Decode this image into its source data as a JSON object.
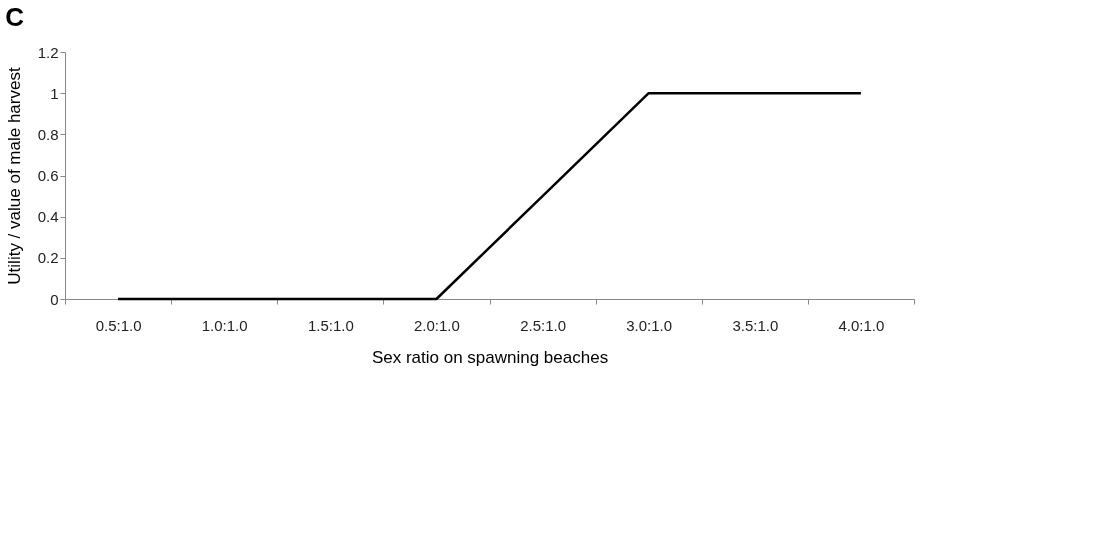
{
  "chart_data": {
    "type": "line",
    "title": "C",
    "xlabel": "Sex ratio on spawning beaches",
    "ylabel": "Utility / value of male harvest",
    "categories": [
      "0.5:1.0",
      "1.0:1.0",
      "1.5:1.0",
      "2.0:1.0",
      "2.5:1.0",
      "3.0:1.0",
      "3.5:1.0",
      "4.0:1.0"
    ],
    "series": [
      {
        "color": "#000000",
        "values": [
          0,
          0,
          0,
          0,
          0.5,
          1,
          1,
          1
        ]
      }
    ],
    "ylim": [
      0,
      1.2
    ],
    "yticks": [
      0,
      0.2,
      0.4,
      0.6,
      0.8,
      1,
      1.2
    ],
    "grid": false,
    "marker": "none",
    "line_style": "solid"
  }
}
